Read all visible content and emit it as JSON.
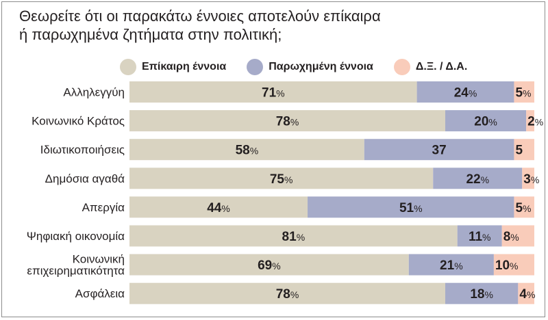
{
  "title_lines": [
    "Θεωρείτε ότι οι παρακάτω έννοιες αποτελούν επίκαιρα",
    "ή παρωχημένα ζητήματα στην πολιτική;"
  ],
  "colors": {
    "topical": "#d9d3c1",
    "outdated": "#a6abc9",
    "dk": "#f9ccba",
    "text": "#231f20",
    "frame": "#8c8c8c"
  },
  "chart_data": {
    "type": "bar",
    "orientation": "horizontal",
    "stacked": true,
    "title": "Θεωρείτε ότι οι παρακάτω έννοιες αποτελούν επίκαιρα ή παρωχημένα ζητήματα στην πολιτική;",
    "categories": [
      [
        "Αλληλεγγύη"
      ],
      [
        "Κοινωνικό Κράτος"
      ],
      [
        "Ιδιωτικοποιήσεις"
      ],
      [
        "Δημόσια αγαθά"
      ],
      [
        "Απεργία"
      ],
      [
        "Ψηφιακή οικονομία"
      ],
      [
        "Κοινωνική",
        "επιχειρηματικότητα"
      ],
      [
        "Ασφάλεια"
      ]
    ],
    "series": [
      {
        "name": "Επίκαιρη έννοια",
        "color": "#d9d3c1",
        "values": [
          71,
          78,
          58,
          75,
          44,
          81,
          69,
          78
        ],
        "show_pct": [
          true,
          true,
          true,
          true,
          true,
          true,
          true,
          true
        ]
      },
      {
        "name": "Παρωχημένη έννοια",
        "color": "#a6abc9",
        "values": [
          24,
          20,
          37,
          22,
          51,
          11,
          21,
          18
        ],
        "show_pct": [
          true,
          true,
          false,
          true,
          true,
          true,
          true,
          true
        ]
      },
      {
        "name": "Δ.Ξ. / Δ.Α.",
        "color": "#f9ccba",
        "values": [
          5,
          2,
          5,
          3,
          5,
          8,
          10,
          4
        ],
        "show_pct": [
          true,
          true,
          false,
          true,
          true,
          true,
          true,
          true
        ]
      }
    ],
    "percent_symbol": "%",
    "xlim": [
      0,
      100
    ],
    "legend": "top",
    "grid": false
  }
}
